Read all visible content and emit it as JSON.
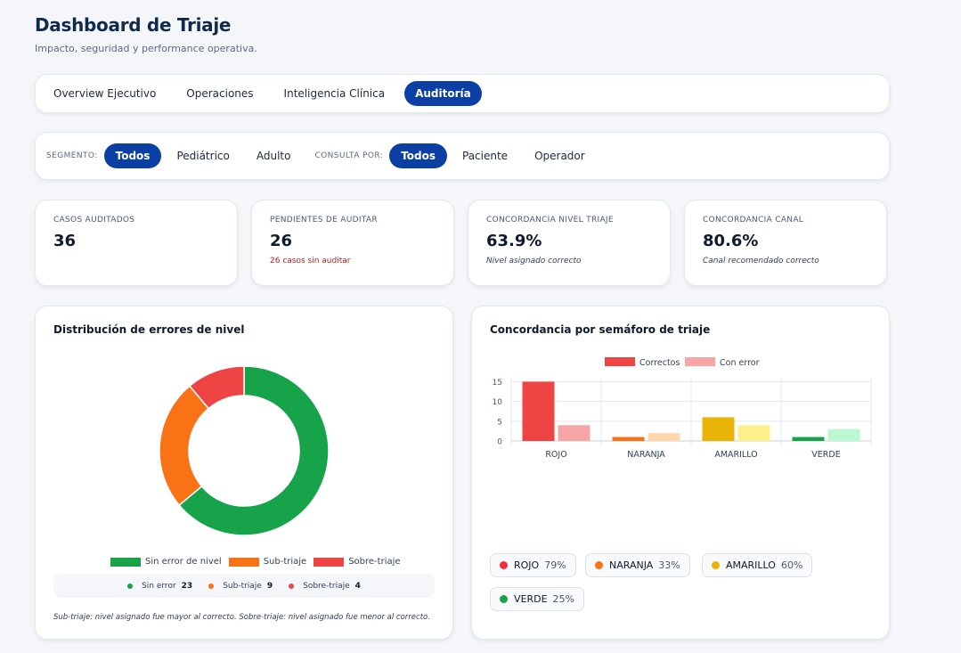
{
  "header": {
    "title": "Dashboard de Triaje",
    "subtitle": "Impacto, seguridad y performance operativa."
  },
  "tabs": [
    {
      "label": "Overview Ejecutivo",
      "active": false
    },
    {
      "label": "Operaciones",
      "active": false
    },
    {
      "label": "Inteligencia Clínica",
      "active": false
    },
    {
      "label": "Auditoría",
      "active": true
    }
  ],
  "filters": {
    "segmento_label": "SEGMENTO:",
    "segmento_options": [
      "Todos",
      "Pediátrico",
      "Adulto"
    ],
    "segmento_selected": "Todos",
    "consulta_label": "CONSULTA POR:",
    "consulta_options": [
      "Todos",
      "Paciente",
      "Operador"
    ],
    "consulta_selected": "Todos"
  },
  "kpis": [
    {
      "label": "CASOS AUDITADOS",
      "value": "36",
      "note": ""
    },
    {
      "label": "PENDIENTES DE AUDITAR",
      "value": "26",
      "note": "26 casos sin auditar"
    },
    {
      "label": "CONCORDANCIA NIVEL TRIAJE",
      "value": "63.9%",
      "note": "Nivel asignado correcto"
    },
    {
      "label": "CONCORDANCIA CANAL",
      "value": "80.6%",
      "note": "Canal recomendado correcto"
    }
  ],
  "donut_panel": {
    "title": "Distribución de errores de nivel",
    "legend": [
      "Sin error de nivel",
      "Sub-triaje",
      "Sobre-triaje"
    ],
    "summary": [
      {
        "label": "Sin error",
        "count": "23"
      },
      {
        "label": "Sub-triaje",
        "count": "9"
      },
      {
        "label": "Sobre-triaje",
        "count": "4"
      }
    ],
    "footnote": "Sub-triaje: nivel asignado fue mayor al correcto. Sobre-triaje: nivel asignado fue menor al correcto."
  },
  "bar_panel": {
    "title": "Concordancia por semáforo de triaje",
    "pills": [
      {
        "label": "ROJO",
        "pct": "79%",
        "color": "#ef2f3c"
      },
      {
        "label": "NARANJA",
        "pct": "33%",
        "color": "#f97316"
      },
      {
        "label": "AMARILLO",
        "pct": "60%",
        "color": "#eab308"
      },
      {
        "label": "VERDE",
        "pct": "25%",
        "color": "#16a34a"
      }
    ]
  },
  "colors": {
    "primary": "#0b3fa3",
    "green": "#16a34a",
    "orange": "#f97316",
    "red": "#ef4444"
  },
  "chart_data": [
    {
      "type": "pie",
      "variant": "donut",
      "labels": [
        "Sin error de nivel",
        "Sub-triaje",
        "Sobre-triaje"
      ],
      "values": [
        23,
        9,
        4
      ],
      "colors": [
        "#16a34a",
        "#f97316",
        "#ef4444"
      ],
      "legend": "bottom"
    },
    {
      "type": "bar",
      "categories": [
        "ROJO",
        "NARANJA",
        "AMARILLO",
        "VERDE"
      ],
      "series": [
        {
          "name": "Correctos",
          "values": [
            15,
            1,
            6,
            1
          ],
          "colors": [
            "#ef4444",
            "#f97316",
            "#eab308",
            "#16a34a"
          ]
        },
        {
          "name": "Con error",
          "values": [
            4,
            2,
            4,
            3
          ],
          "colors": [
            "#f8a5a5",
            "#fed7aa",
            "#fdf08a",
            "#bbf7d0"
          ]
        }
      ],
      "yticks": [
        0,
        5,
        10,
        15
      ],
      "ylim": [
        0,
        16
      ],
      "grid": true,
      "legend": "top"
    }
  ]
}
